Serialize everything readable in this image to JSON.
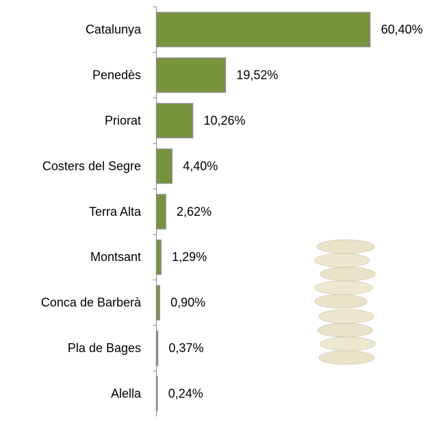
{
  "chart_data": {
    "type": "bar",
    "orientation": "horizontal",
    "categories": [
      "Catalunya",
      "Penedès",
      "Priorat",
      "Costers del Segre",
      "Terra Alta",
      "Montsant",
      "Conca de Barberà",
      "Pla de Bages",
      "Alella"
    ],
    "values": [
      60.4,
      19.52,
      10.26,
      4.4,
      2.62,
      1.29,
      0.9,
      0.37,
      0.24
    ],
    "value_labels": [
      "60,40%",
      "19,52%",
      "10,26%",
      "4,40%",
      "2,62%",
      "1,29%",
      "0,90%",
      "0,37%",
      "0,24%"
    ],
    "color": "#77933c"
  }
}
